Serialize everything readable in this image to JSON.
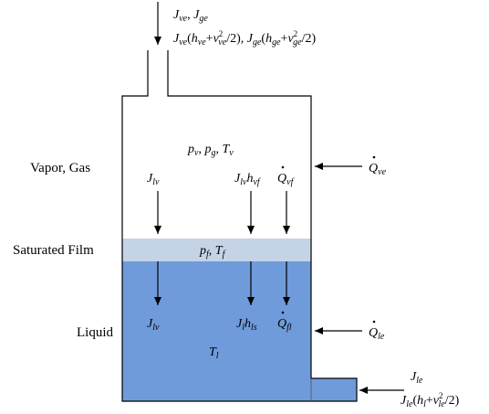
{
  "diagram": {
    "inlet": {
      "flux_symbol": "J",
      "vapor_sub": "ve",
      "gas_sub": "ge",
      "vapor_enthalpy": "h",
      "velocity_symbol": "v",
      "exponent": "2",
      "half": "/2)"
    },
    "regions": {
      "vapor_gas": "Vapor, Gas",
      "film": "Saturated Film",
      "liquid": "Liquid"
    },
    "vapor_props": {
      "p": "p",
      "v": "v",
      "g": "g",
      "T": "T"
    },
    "film_props": {
      "p": "p",
      "f": "f",
      "T": "T"
    },
    "liquid_props": {
      "T": "T",
      "l": "l"
    },
    "symbols": {
      "J": "J",
      "lv": "lv",
      "h": "h",
      "vf": "vf",
      "ls": "ls",
      "Q": "Q",
      "fl": "fl",
      "ve": "ve",
      "le": "le",
      "l": "l"
    },
    "colors": {
      "film": "#c5d3e6",
      "liquid": "#6f9bdb",
      "outline": "#000000"
    }
  }
}
